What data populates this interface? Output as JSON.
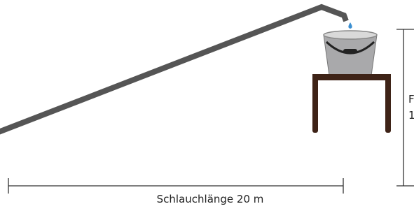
{
  "length_label": "Schlauchlänge 20 m",
  "height_label": {
    "line1": "F",
    "line2": "1"
  }
}
